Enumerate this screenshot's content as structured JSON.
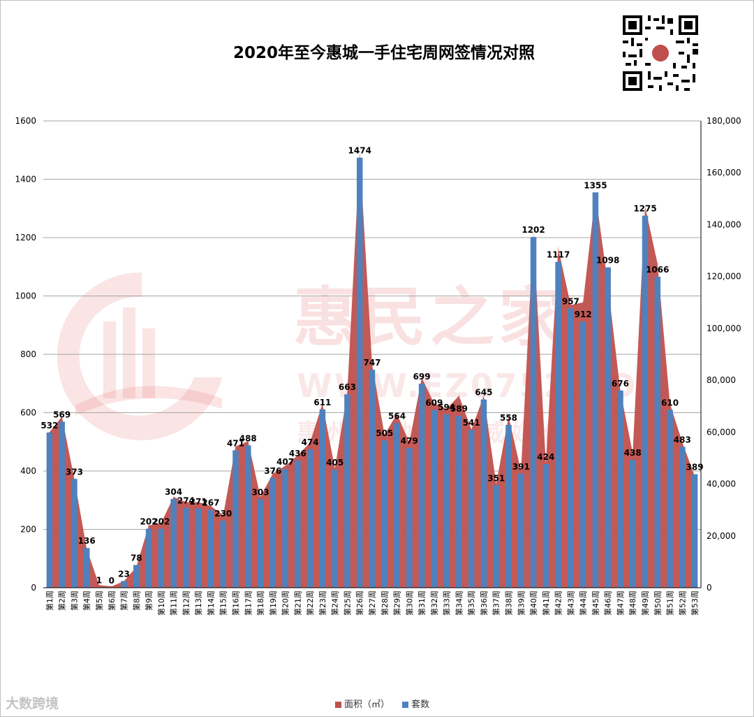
{
  "title": "2020年至今惠城一手住宅周网签情况对照",
  "watermark": {
    "main_text": "惠民之家",
    "url_text": "WWW.EZ0752.COM",
    "sub_text": "惠州房地产权威媒体"
  },
  "brand_text": "大数跨境",
  "colors": {
    "area_series": "#C0504D",
    "bar_series": "#4F81BD",
    "grid": "#A6A6A6",
    "axis_text": "#000000"
  },
  "chart_data": {
    "type": "bar",
    "title": "2020年至今惠城一手住宅周网签情况对照",
    "categories": [
      "第1周",
      "第2周",
      "第3周",
      "第4周",
      "第5周",
      "第6周",
      "第7周",
      "第8周",
      "第9周",
      "第10周",
      "第11周",
      "第12周",
      "第13周",
      "第14周",
      "第15周",
      "第16周",
      "第17周",
      "第18周",
      "第19周",
      "第20周",
      "第21周",
      "第22周",
      "第23周",
      "第24周",
      "第25周",
      "第26周",
      "第27周",
      "第28周",
      "第29周",
      "第30周",
      "第31周",
      "第32周",
      "第33周",
      "第34周",
      "第35周",
      "第36周",
      "第37周",
      "第38周",
      "第39周",
      "第40周",
      "第41周",
      "第42周",
      "第43周",
      "第44周",
      "第45周",
      "第46周",
      "第47周",
      "第48周",
      "第49周",
      "第50周",
      "第51周",
      "第52周",
      "第53周"
    ],
    "series": [
      {
        "name": "面积（㎡）",
        "type": "area",
        "axis": "right",
        "values": [
          60000,
          66000,
          42000,
          15000,
          1000,
          500,
          2500,
          8000,
          24000,
          25000,
          35000,
          33000,
          33000,
          31500,
          28000,
          54500,
          56500,
          35000,
          44000,
          47000,
          51000,
          56000,
          71000,
          46000,
          75000,
          168000,
          86000,
          59000,
          67000,
          56000,
          81000,
          71000,
          69000,
          74000,
          61000,
          74000,
          40000,
          66000,
          45000,
          137000,
          48000,
          131000,
          109000,
          110000,
          152000,
          117000,
          76000,
          52000,
          147000,
          125000,
          71000,
          56000,
          43000
        ]
      },
      {
        "name": "套数",
        "type": "bar",
        "axis": "left",
        "values": [
          532,
          569,
          373,
          136,
          1,
          0,
          23,
          78,
          202,
          202,
          304,
          274,
          271,
          267,
          230,
          471,
          488,
          303,
          376,
          407,
          436,
          474,
          611,
          405,
          663,
          1474,
          747,
          505,
          564,
          479,
          699,
          609,
          594,
          589,
          541,
          645,
          351,
          558,
          391,
          1202,
          424,
          1117,
          957,
          912,
          1355,
          1098,
          676,
          438,
          1275,
          1066,
          610,
          483,
          389
        ]
      }
    ],
    "left_axis": {
      "min": 0,
      "max": 1600,
      "ticks": [
        "0",
        "200",
        "400",
        "600",
        "800",
        "1000",
        "1200",
        "1400",
        "1600"
      ]
    },
    "right_axis": {
      "min": 0,
      "max": 180000,
      "ticks": [
        "0",
        "20,000",
        "40,000",
        "60,000",
        "80,000",
        "100,000",
        "120,000",
        "140,000",
        "160,000",
        "180,000"
      ]
    },
    "grid": true,
    "legend": "bottom"
  }
}
